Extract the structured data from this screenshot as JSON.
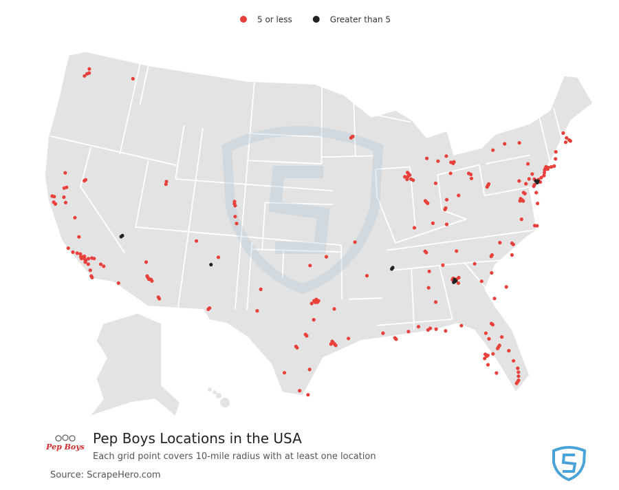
{
  "legend": [
    {
      "label": "5 or less",
      "color": "#e8413c"
    },
    {
      "label": "Greater than 5",
      "color": "#222222"
    }
  ],
  "title": "Pep Boys Locations in the USA",
  "subtitle": "Each grid point covers 10-mile radius with at least one location",
  "source": "Source: ScrapeHero.com",
  "logo_text": "Pep Boys",
  "series": [
    {
      "name": "5 or less",
      "color": "#e8413c",
      "lon": [
        -122.3,
        -122.2,
        -122.4,
        -122.6,
        -117.4,
        -121.5,
        -121.3,
        -122.4,
        -122.1,
        -121.9,
        -122.2,
        -121.3,
        -121.0,
        -119.8,
        -121.8,
        -119.8,
        -119.7,
        -118.2,
        -118.4,
        -118.0,
        -117.9,
        -118.3,
        -118.1,
        -117.7,
        -117.4,
        -117.2,
        -117.9,
        -118.5,
        -118.8,
        -119.2,
        -117.6,
        -117.3,
        -117.1,
        -117.0,
        -116.5,
        -116.2,
        -119.0,
        -119.7,
        -112.1,
        -111.9,
        -112.0,
        -111.8,
        -111.7,
        -112.2,
        -110.9,
        -110.8,
        -114.6,
        -112.5,
        -111.9,
        -111.9,
        -104.99,
        -104.9,
        -105.0,
        -104.8,
        -104.6,
        -106.0,
        -108.2,
        -106.4,
        -106.3,
        -97.0,
        -96.8,
        -96.7,
        -97.3,
        -96.9,
        -97.1,
        -95.4,
        -95.3,
        -95.5,
        -95.2,
        -95.6,
        -98.5,
        -98.6,
        -97.7,
        -97.8,
        -97.4,
        -98.2,
        -97.5,
        -101.9,
        -102.1,
        -97.1,
        -95.3,
        -94.1,
        -99.5,
        -97.5,
        -96.0,
        -90.1,
        -90.0,
        -91.1,
        -88.0,
        -88.9,
        -92.3,
        -93.3,
        -93.3,
        -93.2,
        -93.4,
        -87.6,
        -87.8,
        -87.7,
        -87.9,
        -88.1,
        -87.5,
        -87.8,
        -87.3,
        -86.2,
        -86.1,
        -86.3,
        -85.1,
        -87.6,
        -83.1,
        -83.3,
        -83.0,
        -85.7,
        -84.6,
        -83.7,
        -83.0,
        -84.5,
        -84.4,
        -84.2,
        -81.7,
        -81.5,
        -83.5,
        -81.5,
        -85.8,
        -84.5,
        -86.8,
        -86.7,
        -83.9,
        -85.3,
        -84.2,
        -84.6,
        -84.1,
        -84.5,
        -84.0,
        -86.8,
        -86.3,
        -86.6,
        -82.0,
        -81.1,
        -81.0,
        -82.4,
        -79.9,
        -80.8,
        -80.7,
        -78.6,
        -78.7,
        -79.8,
        -78.9,
        -77.4,
        -76.3,
        -76.1,
        -77.0,
        -77.2,
        -77.1,
        -76.9,
        -76.6,
        -76.7,
        -75.0,
        -75.4,
        -75.5,
        -74.9,
        -80.0,
        -79.9,
        -80.1,
        -76.9,
        -75.5,
        -76.3,
        -75.9,
        -75.7,
        -74.2,
        -74.1,
        -74.0,
        -74.3,
        -74.4,
        -74.7,
        -73.9,
        -73.8,
        -73.5,
        -73.2,
        -78.9,
        -77.6,
        -76.1,
        -72.9,
        -72.7,
        -71.1,
        -71.0,
        -71.3,
        -71.5,
        -71.5,
        -75.6,
        -75.5,
        -75.6,
        -81.7,
        -81.6,
        -84.3,
        -87.2,
        -85.7,
        -86.5,
        -87.0,
        -81.4,
        -81.3,
        -81.5,
        -82.5,
        -82.4,
        -82.7,
        -82.6,
        -82.5,
        -81.9,
        -81.0,
        -82.3,
        -82.1,
        -80.6,
        -80.1,
        -80.1,
        -80.15,
        -80.2,
        -80.3,
        -80.4,
        -81.95,
        -80.35
      ],
      "lat": [
        47.6,
        47.3,
        47.2,
        47.0,
        47.7,
        38.6,
        38.7,
        37.8,
        37.4,
        37.3,
        37.8,
        37.95,
        37.6,
        36.7,
        39.7,
        39.5,
        39.6,
        34.05,
        34.0,
        33.9,
        33.8,
        33.9,
        34.1,
        34.0,
        34.1,
        34.1,
        33.7,
        34.2,
        34.2,
        34.2,
        33.6,
        33.2,
        32.8,
        32.7,
        33.8,
        33.7,
        35.4,
        34.4,
        33.5,
        33.4,
        33.4,
        33.4,
        33.3,
        33.6,
        32.2,
        32.1,
        32.7,
        34.6,
        40.7,
        40.5,
        39.74,
        39.6,
        39.9,
        38.8,
        38.3,
        35.7,
        36.7,
        31.8,
        31.9,
        32.8,
        32.8,
        32.9,
        32.7,
        33.0,
        32.9,
        29.8,
        29.7,
        29.9,
        29.6,
        29.7,
        29.4,
        29.5,
        30.3,
        30.4,
        27.8,
        26.2,
        25.9,
        33.6,
        32.0,
        31.5,
        32.3,
        30.1,
        27.5,
        35.5,
        36.15,
        30.0,
        29.9,
        30.4,
        30.7,
        30.4,
        34.7,
        37.2,
        44.98,
        45.0,
        44.9,
        41.9,
        41.8,
        42.0,
        41.6,
        41.8,
        41.6,
        42.1,
        41.5,
        39.8,
        39.7,
        39.9,
        41.1,
        38.0,
        42.4,
        42.5,
        42.5,
        43.0,
        42.7,
        43.0,
        40.0,
        39.1,
        39.2,
        39.8,
        41.5,
        41.4,
        41.7,
        41.1,
        38.2,
        38.0,
        36.2,
        36.1,
        35.96,
        35.05,
        33.9,
        33.9,
        33.6,
        34.0,
        34.0,
        33.5,
        32.4,
        34.7,
        33.5,
        32.1,
        34.0,
        34.85,
        32.8,
        35.2,
        35.3,
        35.8,
        35.9,
        36.1,
        35.05,
        37.5,
        36.85,
        36.8,
        38.9,
        38.85,
        39.0,
        38.8,
        39.3,
        39.4,
        40.1,
        40.2,
        39.8,
        39.9,
        40.4,
        40.5,
        40.3,
        40.3,
        40.6,
        40.0,
        40.3,
        41.4,
        40.7,
        40.8,
        40.9,
        40.5,
        40.3,
        40.2,
        40.7,
        40.8,
        40.8,
        40.8,
        42.9,
        43.2,
        43.05,
        41.3,
        41.8,
        42.4,
        42.3,
        42.6,
        42.3,
        43.0,
        39.7,
        39.2,
        38.4,
        30.3,
        30.2,
        30.45,
        30.4,
        30.2,
        30.4,
        30.5,
        28.5,
        28.6,
        28.4,
        27.95,
        28.0,
        27.8,
        28.1,
        27.3,
        26.6,
        29.2,
        29.65,
        29.2,
        28.1,
        26.7,
        26.4,
        26.1,
        25.8,
        25.7,
        25.6,
        28.05,
        27.3
      ]
    },
    {
      "name": "Greater than 5",
      "color": "#222222",
      "lon": [
        -115.1,
        -115.2,
        -106.6,
        -90.0,
        -89.9,
        -84.4,
        -84.3,
        -84.5,
        -84.4,
        -75.15,
        -75.1,
        -75.2,
        -75.3
      ],
      "lat": [
        36.2,
        36.1,
        35.1,
        35.1,
        35.2,
        33.75,
        33.8,
        33.7,
        33.9,
        39.95,
        40.0,
        39.9,
        40.05
      ]
    }
  ]
}
